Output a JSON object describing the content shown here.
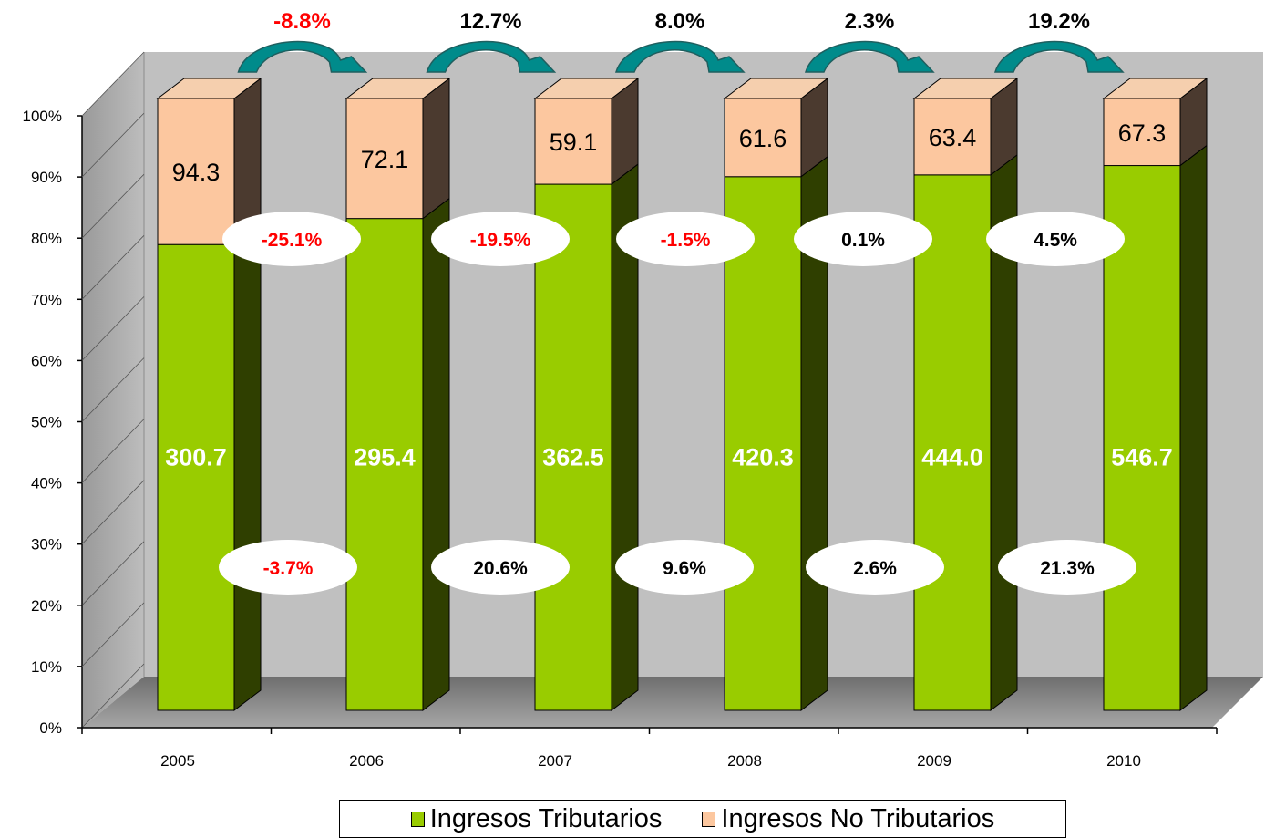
{
  "chart_data": {
    "type": "bar",
    "stacked": true,
    "normalized": true,
    "categories": [
      "2005",
      "2006",
      "2007",
      "2008",
      "2009",
      "2010"
    ],
    "series": [
      {
        "name": "Ingresos Tributarios",
        "values": [
          300.7,
          295.4,
          362.5,
          420.3,
          444.0,
          546.7
        ],
        "labels": [
          "300.7",
          "295.4",
          "362.5",
          "420.3",
          "444.0",
          "546.7"
        ],
        "color": "#99cc00"
      },
      {
        "name": "Ingresos No Tributarios",
        "values": [
          94.3,
          72.1,
          59.1,
          61.6,
          63.4,
          67.3
        ],
        "labels": [
          "94.3",
          "72.1",
          "59.1",
          "61.6",
          "63.4",
          "67.3"
        ],
        "color": "#fcc79f"
      }
    ],
    "ylim": [
      0,
      100
    ],
    "yticks": [
      "0%",
      "10%",
      "20%",
      "30%",
      "40%",
      "50%",
      "60%",
      "70%",
      "80%",
      "90%",
      "100%"
    ],
    "total_growth": [
      "-8.8%",
      "12.7%",
      "8.0%",
      "2.3%",
      "19.2%"
    ],
    "no_tributarios_growth": [
      "-25.1%",
      "-19.5%",
      "-1.5%",
      "0.1%",
      "4.5%"
    ],
    "tributarios_growth": [
      "-3.7%",
      "20.6%",
      "9.6%",
      "2.6%",
      "21.3%"
    ],
    "legend_position": "bottom",
    "colors": {
      "negative_text": "#ff0000",
      "positive_text": "#000000",
      "arrow": "#008b8b",
      "wall": "#c0c0c0",
      "floor": "#808080"
    }
  },
  "legend": {
    "tributarios": "Ingresos Tributarios",
    "no_tributarios": "Ingresos No Tributarios"
  }
}
